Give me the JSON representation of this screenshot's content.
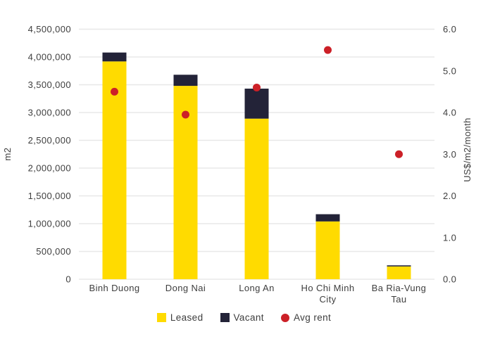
{
  "figure": {
    "background": "#FFFFFF",
    "text_color": "#3E3E3E",
    "gridline_color": "#E8E8E8"
  },
  "chart_data": {
    "type": "bar",
    "subtype": "stacked-columns-with-scatter-overlay",
    "title": "",
    "categories": [
      "Binh Duong",
      "Dong Nai",
      "Long An",
      "Ho Chi Minh City",
      "Ba Ria-Vung Tau"
    ],
    "category_label_lines": [
      [
        "Binh Duong"
      ],
      [
        "Dong Nai"
      ],
      [
        "Long An"
      ],
      [
        "Ho Chi Minh",
        "City"
      ],
      [
        "Ba Ria-Vung",
        "Tau"
      ]
    ],
    "series": [
      {
        "name": "Leased",
        "type": "bar",
        "axis": "left",
        "color": "#FFDB00",
        "values": [
          3920000,
          3480000,
          2890000,
          1040000,
          230000
        ]
      },
      {
        "name": "Vacant",
        "type": "bar",
        "axis": "left",
        "color": "#232338",
        "values": [
          160000,
          200000,
          540000,
          130000,
          20000
        ]
      }
    ],
    "overlay_series": [
      {
        "name": "Avg rent",
        "type": "scatter",
        "axis": "right",
        "marker": "circle",
        "color": "#CC2027",
        "values": [
          4.5,
          3.95,
          4.6,
          5.5,
          3.0
        ]
      }
    ],
    "left_axis": {
      "label": "m2",
      "min": 0,
      "max": 4500000,
      "tick_step": 500000,
      "tick_labels": [
        "0",
        "500,000",
        "1,000,000",
        "1,500,000",
        "2,000,000",
        "2,500,000",
        "3,000,000",
        "3,500,000",
        "4,000,000",
        "4,500,000"
      ]
    },
    "right_axis": {
      "label": "US$/m2/month",
      "min": 0,
      "max": 6,
      "tick_step": 1,
      "tick_labels": [
        "0.0",
        "1.0",
        "2.0",
        "3.0",
        "4.0",
        "5.0",
        "6.0"
      ]
    },
    "grid": true,
    "legend_position": "bottom",
    "legend": [
      "Leased",
      "Vacant",
      "Avg rent"
    ]
  }
}
